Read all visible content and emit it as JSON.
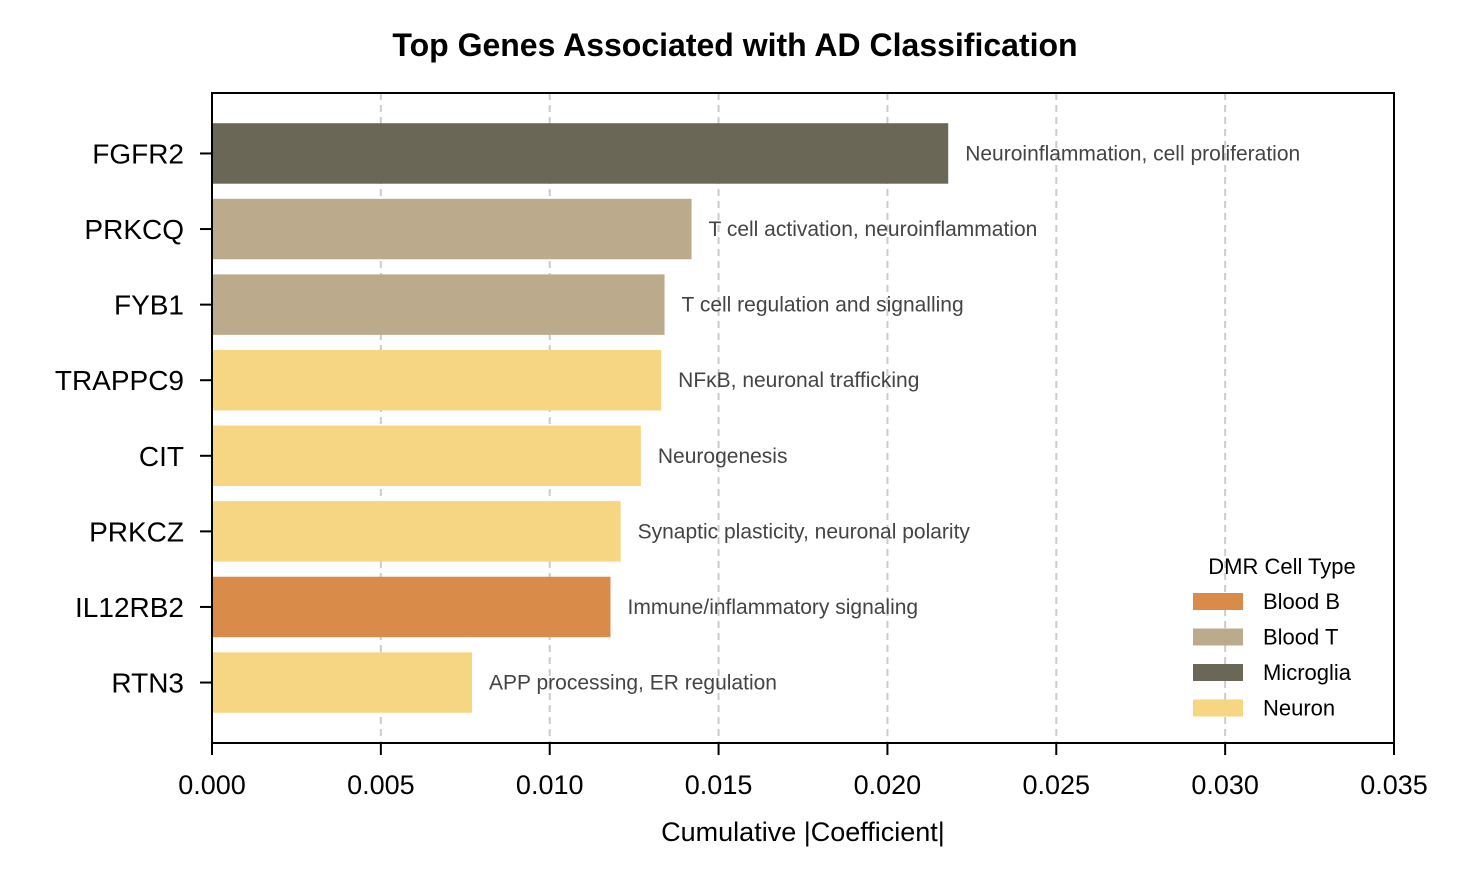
{
  "chart_data": {
    "type": "bar",
    "orientation": "horizontal",
    "title": "Top Genes Associated with AD Classification",
    "xlabel": "Cumulative |Coefficient|",
    "ylabel": "",
    "xlim": [
      0.0,
      0.035
    ],
    "xticks": [
      "0.000",
      "0.005",
      "0.010",
      "0.015",
      "0.020",
      "0.025",
      "0.030",
      "0.035"
    ],
    "xtick_values": [
      0.0,
      0.005,
      0.01,
      0.015,
      0.02,
      0.025,
      0.03,
      0.035
    ],
    "grid": "vertical dashed",
    "bars": [
      {
        "gene": "FGFR2",
        "value": 0.0218,
        "cell_type": "Microglia",
        "annotation": "Neuroinflammation, cell proliferation"
      },
      {
        "gene": "PRKCQ",
        "value": 0.0142,
        "cell_type": "Blood T",
        "annotation": "T cell activation, neuroinflammation"
      },
      {
        "gene": "FYB1",
        "value": 0.0134,
        "cell_type": "Blood T",
        "annotation": "T cell regulation and signalling"
      },
      {
        "gene": "TRAPPC9",
        "value": 0.0133,
        "cell_type": "Neuron",
        "annotation": "NFκB, neuronal trafficking"
      },
      {
        "gene": "CIT",
        "value": 0.0127,
        "cell_type": "Neuron",
        "annotation": "Neurogenesis"
      },
      {
        "gene": "PRKCZ",
        "value": 0.0121,
        "cell_type": "Neuron",
        "annotation": "Synaptic plasticity, neuronal polarity"
      },
      {
        "gene": "IL12RB2",
        "value": 0.0118,
        "cell_type": "Blood B",
        "annotation": "Immune/inflammatory signaling"
      },
      {
        "gene": "RTN3",
        "value": 0.0077,
        "cell_type": "Neuron",
        "annotation": "APP processing, ER regulation"
      }
    ],
    "legend": {
      "title": "DMR Cell Type",
      "placement": "lower-right",
      "entries": [
        {
          "label": "Blood B",
          "color": "#D98B4A"
        },
        {
          "label": "Blood T",
          "color": "#BBAB8C"
        },
        {
          "label": "Microglia",
          "color": "#6A6756"
        },
        {
          "label": "Neuron",
          "color": "#F6D683"
        }
      ]
    }
  }
}
